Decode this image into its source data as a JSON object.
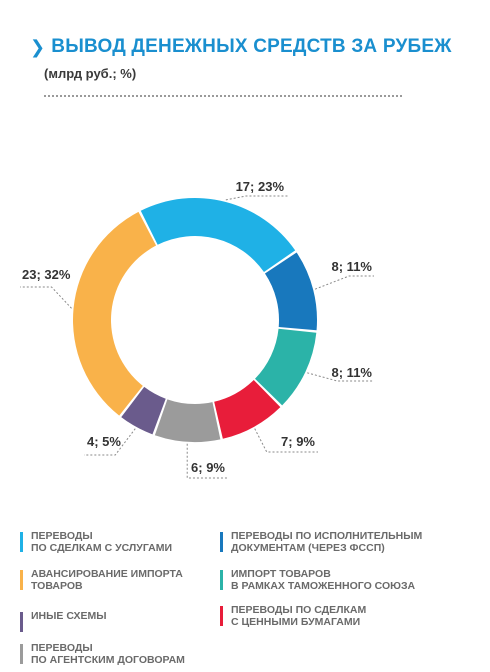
{
  "header": {
    "title": "ВЫВОД ДЕНЕЖНЫХ СРЕДСТВ ЗА РУБЕЖ",
    "subtitle": "(млрд руб.; %)"
  },
  "chart_data": {
    "type": "pie",
    "donut": true,
    "title": "ВЫВОД ДЕНЕЖНЫХ СРЕДСТВ ЗА РУБЕЖ",
    "units": "млрд руб.; %",
    "series": [
      {
        "name": "Переводы по сделкам с услугами",
        "value": 17,
        "percent": 23,
        "color": "#1fb1e6",
        "label": "17; 23%"
      },
      {
        "name": "Переводы по исполнительным документам (через ФССП)",
        "value": 8,
        "percent": 11,
        "color": "#1878bd",
        "label": "8; 11%"
      },
      {
        "name": "Импорт товаров в рамках Таможенного союза",
        "value": 8,
        "percent": 11,
        "color": "#2bb3a8",
        "label": "8; 11%"
      },
      {
        "name": "Переводы по сделкам с ценными бумагами",
        "value": 7,
        "percent": 9,
        "color": "#e81d3a",
        "label": "7; 9%"
      },
      {
        "name": "Переводы по агентским договорам",
        "value": 6,
        "percent": 9,
        "color": "#9b9b9b",
        "label": "6; 9%"
      },
      {
        "name": "Иные схемы",
        "value": 4,
        "percent": 5,
        "color": "#6a5b8c",
        "label": "4; 5%"
      },
      {
        "name": "Авансирование импорта товаров",
        "value": 23,
        "percent": 32,
        "color": "#f9b24a",
        "label": "23; 32%"
      }
    ]
  },
  "legend": [
    {
      "text": "ПЕРЕВОДЫ\nПО СДЕЛКАМ С УСЛУГАМИ",
      "color": "#1fb1e6"
    },
    {
      "text": "ПЕРЕВОДЫ ПО ИСПОЛНИТЕЛЬНЫМ\nДОКУМЕНТАМ (ЧЕРЕЗ ФССП)",
      "color": "#1878bd"
    },
    {
      "text": "АВАНСИРОВАНИЕ ИМПОРТА\nТОВАРОВ",
      "color": "#f9b24a"
    },
    {
      "text": "ИМПОРТ ТОВАРОВ\nВ РАМКАХ ТАМОЖЕННОГО СОЮЗА",
      "color": "#2bb3a8"
    },
    {
      "text": "ИНЫЕ СХЕМЫ",
      "color": "#6a5b8c"
    },
    {
      "text": "ПЕРЕВОДЫ ПО СДЕЛКАМ\nС ЦЕННЫМИ БУМАГАМИ",
      "color": "#e81d3a"
    },
    {
      "text": "ПЕРЕВОДЫ\nПО АГЕНТСКИМ ДОГОВОРАМ",
      "color": "#9b9b9b"
    }
  ]
}
